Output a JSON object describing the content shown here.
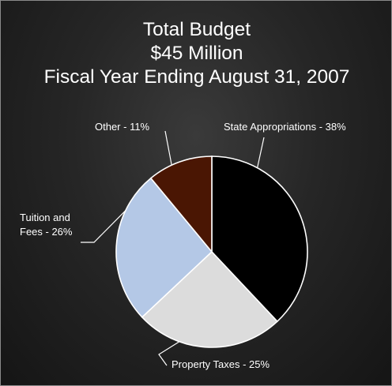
{
  "chart_data": {
    "type": "pie",
    "title": "Total Budget",
    "subtitle": "$45 Million",
    "subtitle2": "Fiscal Year Ending August 31, 2007",
    "categories": [
      "State Appropriations",
      "Property Taxes",
      "Tuition and Fees",
      "Other"
    ],
    "values": [
      38,
      25,
      26,
      11
    ],
    "unit": "%",
    "colors": [
      "#000000",
      "#dcdcdc",
      "#b4c8e6",
      "#4a1603"
    ],
    "labels": {
      "state": "State Appropriations - 38%",
      "property": "Property Taxes - 25%",
      "tuition_line1": "Tuition and",
      "tuition_line2": "Fees - 26%",
      "other": "Other - 11%"
    },
    "legend": "none"
  }
}
